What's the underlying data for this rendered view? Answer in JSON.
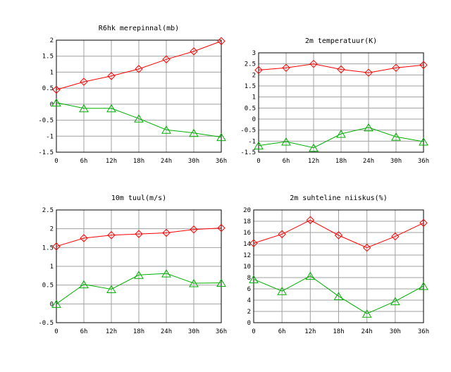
{
  "chart_data": [
    {
      "type": "line",
      "title": "R6hk merepinnal(mb)",
      "categories": [
        "0",
        "6h",
        "12h",
        "18h",
        "24h",
        "30h",
        "36h"
      ],
      "ylim": [
        -1.5,
        2
      ],
      "yticks": [
        "2",
        "1.5",
        "1",
        "0.5",
        "0",
        "-0.5",
        "-1",
        "-1.5"
      ],
      "grid": true,
      "series": [
        {
          "color": "#ff0000",
          "marker": "diamond",
          "values": [
            0.45,
            0.7,
            0.88,
            1.1,
            1.4,
            1.65,
            1.97
          ]
        },
        {
          "color": "#00b000",
          "marker": "triangle",
          "values": [
            0.05,
            -0.13,
            -0.13,
            -0.45,
            -0.8,
            -0.9,
            -1.03
          ]
        }
      ]
    },
    {
      "type": "line",
      "title": "2m temperatuur(K)",
      "categories": [
        "0",
        "6h",
        "12h",
        "18h",
        "24h",
        "30h",
        "36h"
      ],
      "ylim": [
        -1.5,
        3
      ],
      "yticks": [
        "3",
        "2.5",
        "2",
        "1.5",
        "1",
        "0.5",
        "0",
        "-0.5",
        "-1",
        "-1.5"
      ],
      "grid": true,
      "series": [
        {
          "color": "#ff0000",
          "marker": "diamond",
          "values": [
            2.22,
            2.32,
            2.5,
            2.25,
            2.1,
            2.32,
            2.45
          ]
        },
        {
          "color": "#00b000",
          "marker": "triangle",
          "values": [
            -1.2,
            -1.02,
            -1.3,
            -0.67,
            -0.38,
            -0.8,
            -1.02
          ]
        }
      ]
    },
    {
      "type": "line",
      "title": "10m tuul(m/s)",
      "categories": [
        "0",
        "6h",
        "12h",
        "18h",
        "24h",
        "30h",
        "36h"
      ],
      "ylim": [
        -0.5,
        2.5
      ],
      "yticks": [
        "2.5",
        "2",
        "1.5",
        "1",
        "0.5",
        "0",
        "-0.5"
      ],
      "grid": true,
      "series": [
        {
          "color": "#ff0000",
          "marker": "diamond",
          "values": [
            1.53,
            1.75,
            1.83,
            1.86,
            1.89,
            1.98,
            2.02
          ]
        },
        {
          "color": "#00b000",
          "marker": "triangle",
          "values": [
            0.0,
            0.52,
            0.39,
            0.77,
            0.81,
            0.55,
            0.56
          ]
        }
      ]
    },
    {
      "type": "line",
      "title": "2m suhteline niiskus(%)",
      "categories": [
        "0",
        "6h",
        "12h",
        "18h",
        "24h",
        "30h",
        "36h"
      ],
      "ylim": [
        0,
        20
      ],
      "yticks": [
        "20",
        "18",
        "16",
        "14",
        "12",
        "10",
        "8",
        "6",
        "4",
        "2",
        "0"
      ],
      "grid": true,
      "series": [
        {
          "color": "#ff0000",
          "marker": "diamond",
          "values": [
            14.1,
            15.7,
            18.2,
            15.5,
            13.3,
            15.3,
            17.7
          ]
        },
        {
          "color": "#00b000",
          "marker": "triangle",
          "values": [
            7.7,
            5.6,
            8.3,
            4.7,
            1.6,
            3.8,
            6.5
          ]
        }
      ]
    }
  ]
}
